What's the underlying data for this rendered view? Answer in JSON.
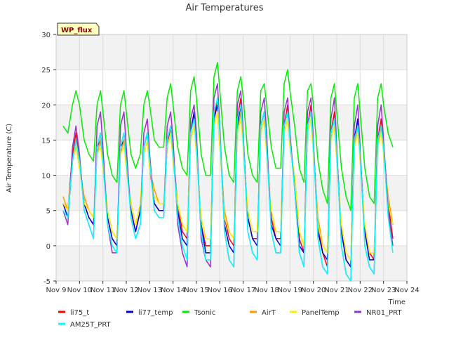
{
  "chart_data": {
    "type": "line",
    "title": "Air Temperatures",
    "xlabel": "Time",
    "ylabel": "Air Temperature (C)",
    "site_label": "WP_flux",
    "x_ticks": [
      "Nov 9",
      "Nov 10",
      "Nov 11",
      "Nov 12",
      "Nov 13",
      "Nov 14",
      "Nov 15",
      "Nov 16",
      "Nov 17",
      "Nov 18",
      "Nov 19",
      "Nov 20",
      "Nov 21",
      "Nov 22",
      "Nov 23",
      "Nov 24"
    ],
    "xlim": [
      9,
      24
    ],
    "ylim": [
      -5,
      30
    ],
    "y_ticks": [
      -5,
      0,
      5,
      10,
      15,
      20,
      25,
      30
    ],
    "grid": true,
    "legend_placement": "bottom",
    "x_unit": "day of November",
    "series": [
      {
        "name": "li75_t",
        "color": "#ff0000",
        "x": [
          9.3,
          9.5,
          9.7,
          9.85,
          10.0,
          10.2,
          10.4,
          10.6,
          10.75,
          10.9,
          11.0,
          11.2,
          11.4,
          11.6,
          11.75,
          11.9,
          12.0,
          12.2,
          12.4,
          12.6,
          12.75,
          12.9,
          13.0,
          13.2,
          13.4,
          13.6,
          13.75,
          13.9,
          14.0,
          14.2,
          14.4,
          14.6,
          14.75,
          14.9,
          15.0,
          15.2,
          15.4,
          15.6,
          15.75,
          15.9,
          16.0,
          16.2,
          16.4,
          16.6,
          16.75,
          16.9,
          17.0,
          17.2,
          17.4,
          17.6,
          17.75,
          17.9,
          18.0,
          18.2,
          18.4,
          18.6,
          18.75,
          18.9,
          19.0,
          19.2,
          19.4,
          19.6,
          19.75,
          19.9,
          20.0,
          20.2,
          20.4,
          20.6,
          20.75,
          20.9,
          21.0,
          21.2,
          21.4,
          21.6,
          21.75,
          21.9,
          22.0,
          22.2,
          22.4,
          22.6,
          22.75,
          22.9,
          23.0,
          23.2,
          23.4
        ],
        "y": [
          6,
          5,
          13,
          16,
          12,
          6,
          4,
          3,
          14,
          15,
          12,
          4,
          1,
          0,
          14,
          16,
          12,
          5,
          2,
          5,
          14,
          16,
          11,
          6,
          5,
          5,
          14,
          17,
          13,
          6,
          2,
          1,
          16,
          19,
          14,
          3,
          0,
          0,
          18,
          21,
          15,
          4,
          1,
          0,
          18,
          21,
          15,
          4,
          1,
          1,
          17,
          19,
          14,
          4,
          1,
          1,
          17,
          20,
          15,
          9,
          1,
          -1,
          17,
          20,
          14,
          3,
          -1,
          -3,
          16,
          19,
          13,
          2,
          -2,
          -3,
          15,
          18,
          13,
          2,
          -1,
          -2,
          15,
          18,
          14,
          6,
          1
        ]
      },
      {
        "name": "li77_temp",
        "color": "#0000cc",
        "x": [
          9.3,
          9.5,
          9.7,
          9.85,
          10.0,
          10.2,
          10.4,
          10.6,
          10.75,
          10.9,
          11.0,
          11.2,
          11.4,
          11.6,
          11.75,
          11.9,
          12.0,
          12.2,
          12.4,
          12.6,
          12.75,
          12.9,
          13.0,
          13.2,
          13.4,
          13.6,
          13.75,
          13.9,
          14.0,
          14.2,
          14.4,
          14.6,
          14.75,
          14.9,
          15.0,
          15.2,
          15.4,
          15.6,
          15.75,
          15.9,
          16.0,
          16.2,
          16.4,
          16.6,
          16.75,
          16.9,
          17.0,
          17.2,
          17.4,
          17.6,
          17.75,
          17.9,
          18.0,
          18.2,
          18.4,
          18.6,
          18.75,
          18.9,
          19.0,
          19.2,
          19.4,
          19.6,
          19.75,
          19.9,
          20.0,
          20.2,
          20.4,
          20.6,
          20.75,
          20.9,
          21.0,
          21.2,
          21.4,
          21.6,
          21.75,
          21.9,
          22.0,
          22.2,
          22.4,
          22.6,
          22.75,
          22.9,
          23.0,
          23.2,
          23.4
        ],
        "y": [
          6,
          4,
          12,
          15,
          12,
          6,
          4,
          3,
          14,
          16,
          12,
          4,
          1,
          0,
          14,
          15,
          12,
          5,
          2,
          5,
          14,
          16,
          12,
          6,
          5,
          5,
          15,
          17,
          13,
          5,
          1,
          0,
          16,
          19,
          14,
          3,
          -1,
          -1,
          18,
          20,
          15,
          3,
          0,
          -1,
          17,
          20,
          15,
          4,
          1,
          0,
          17,
          19,
          14,
          3,
          1,
          0,
          17,
          19,
          15,
          9,
          0,
          -1,
          17,
          19,
          14,
          2,
          -1,
          -2,
          16,
          18,
          13,
          2,
          -2,
          -3,
          15,
          18,
          13,
          2,
          -2,
          -2,
          15,
          17,
          14,
          6,
          3
        ]
      },
      {
        "name": "Tsonic",
        "color": "#00ee00",
        "x": [
          9.3,
          9.5,
          9.7,
          9.85,
          10.0,
          10.2,
          10.4,
          10.6,
          10.75,
          10.9,
          11.0,
          11.2,
          11.4,
          11.6,
          11.75,
          11.9,
          12.0,
          12.2,
          12.4,
          12.6,
          12.75,
          12.9,
          13.0,
          13.2,
          13.4,
          13.6,
          13.75,
          13.9,
          14.0,
          14.2,
          14.4,
          14.6,
          14.75,
          14.9,
          15.0,
          15.2,
          15.4,
          15.6,
          15.75,
          15.9,
          16.0,
          16.2,
          16.4,
          16.6,
          16.75,
          16.9,
          17.0,
          17.2,
          17.4,
          17.6,
          17.75,
          17.9,
          18.0,
          18.2,
          18.4,
          18.6,
          18.75,
          18.9,
          19.0,
          19.2,
          19.4,
          19.6,
          19.75,
          19.9,
          20.0,
          20.2,
          20.4,
          20.6,
          20.75,
          20.9,
          21.0,
          21.2,
          21.4,
          21.6,
          21.75,
          21.9,
          22.0,
          22.2,
          22.4,
          22.6,
          22.75,
          22.9,
          23.0,
          23.2,
          23.4
        ],
        "y": [
          17,
          16,
          20,
          22,
          20,
          15,
          13,
          12,
          20,
          22,
          19,
          13,
          10,
          9,
          20,
          22,
          19,
          13,
          11,
          13,
          20,
          22,
          20,
          15,
          14,
          14,
          21,
          23,
          20,
          14,
          11,
          10,
          22,
          24,
          21,
          13,
          10,
          10,
          24,
          26,
          22,
          14,
          10,
          9,
          22,
          24,
          21,
          13,
          10,
          9,
          22,
          23,
          20,
          14,
          11,
          11,
          23,
          25,
          22,
          17,
          11,
          9,
          22,
          23,
          20,
          12,
          8,
          6,
          21,
          23,
          19,
          11,
          7,
          5,
          21,
          23,
          19,
          11,
          7,
          6,
          21,
          23,
          20,
          16,
          14
        ]
      },
      {
        "name": "AirT",
        "color": "#ff9900",
        "x": [
          9.3,
          9.5,
          9.7,
          9.85,
          10.0,
          10.2,
          10.4,
          10.6,
          10.75,
          10.9,
          11.0,
          11.2,
          11.4,
          11.6,
          11.75,
          11.9,
          12.0,
          12.2,
          12.4,
          12.6,
          12.75,
          12.9,
          13.0,
          13.2,
          13.4,
          13.6,
          13.75,
          13.9,
          14.0,
          14.2,
          14.4,
          14.6,
          14.75,
          14.9,
          15.0,
          15.2,
          15.4,
          15.6,
          15.75,
          15.9,
          16.0,
          16.2,
          16.4,
          16.6,
          16.75,
          16.9,
          17.0,
          17.2,
          17.4,
          17.6,
          17.75,
          17.9,
          18.0,
          18.2,
          18.4,
          18.6,
          18.75,
          18.9,
          19.0,
          19.2,
          19.4,
          19.6,
          19.75,
          19.9,
          20.0,
          20.2,
          20.4,
          20.6,
          20.75,
          20.9,
          21.0,
          21.2,
          21.4,
          21.6,
          21.75,
          21.9,
          22.0,
          22.2,
          22.4,
          22.6,
          22.75,
          22.9,
          23.0,
          23.2,
          23.4
        ],
        "y": [
          7,
          5,
          12,
          14,
          11,
          7,
          5,
          4,
          13,
          15,
          11,
          5,
          2,
          1,
          13,
          15,
          11,
          6,
          3,
          6,
          13,
          15,
          11,
          8,
          6,
          6,
          14,
          16,
          12,
          6,
          3,
          2,
          15,
          17,
          13,
          4,
          1,
          1,
          17,
          19,
          14,
          5,
          2,
          1,
          16,
          19,
          14,
          5,
          2,
          2,
          16,
          18,
          13,
          5,
          2,
          2,
          16,
          18,
          14,
          10,
          2,
          0,
          16,
          18,
          13,
          4,
          0,
          -1,
          15,
          17,
          12,
          3,
          -1,
          -2,
          14,
          17,
          12,
          3,
          -1,
          -1,
          14,
          17,
          13,
          7,
          3
        ]
      },
      {
        "name": "PanelTemp",
        "color": "#ffee00",
        "x": [
          9.3,
          9.5,
          9.7,
          9.85,
          10.0,
          10.2,
          10.4,
          10.6,
          10.75,
          10.9,
          11.0,
          11.2,
          11.4,
          11.6,
          11.75,
          11.9,
          12.0,
          12.2,
          12.4,
          12.6,
          12.75,
          12.9,
          13.0,
          13.2,
          13.4,
          13.6,
          13.75,
          13.9,
          14.0,
          14.2,
          14.4,
          14.6,
          14.75,
          14.9,
          15.0,
          15.2,
          15.4,
          15.6,
          15.75,
          15.9,
          16.0,
          16.2,
          16.4,
          16.6,
          16.75,
          16.9,
          17.0,
          17.2,
          17.4,
          17.6,
          17.75,
          17.9,
          18.0,
          18.2,
          18.4,
          18.6,
          18.75,
          18.9,
          19.0,
          19.2,
          19.4,
          19.6,
          19.75,
          19.9,
          20.0,
          20.2,
          20.4,
          20.6,
          20.75,
          20.9,
          21.0,
          21.2,
          21.4,
          21.6,
          21.75,
          21.9,
          22.0,
          22.2,
          22.4,
          22.6,
          22.75,
          22.9,
          23.0,
          23.2,
          23.4
        ],
        "y": [
          6,
          5,
          12,
          14,
          11,
          6,
          5,
          4,
          13,
          14,
          11,
          5,
          2,
          1,
          13,
          14,
          11,
          6,
          3,
          6,
          13,
          15,
          11,
          7,
          6,
          6,
          14,
          16,
          12,
          6,
          3,
          2,
          15,
          17,
          13,
          4,
          1,
          1,
          17,
          19,
          14,
          4,
          2,
          1,
          16,
          18,
          14,
          5,
          2,
          2,
          16,
          18,
          13,
          5,
          2,
          2,
          16,
          18,
          14,
          10,
          2,
          0,
          16,
          18,
          13,
          3,
          0,
          -1,
          15,
          17,
          12,
          3,
          -1,
          -2,
          14,
          16,
          12,
          3,
          -1,
          -1,
          14,
          16,
          13,
          6,
          3
        ]
      },
      {
        "name": "NR01_PRT",
        "color": "#9933cc",
        "x": [
          9.3,
          9.5,
          9.7,
          9.85,
          10.0,
          10.2,
          10.4,
          10.6,
          10.75,
          10.9,
          11.0,
          11.2,
          11.4,
          11.6,
          11.75,
          11.9,
          12.0,
          12.2,
          12.4,
          12.6,
          12.75,
          12.9,
          13.0,
          13.2,
          13.4,
          13.6,
          13.75,
          13.9,
          14.0,
          14.2,
          14.4,
          14.6,
          14.75,
          14.9,
          15.0,
          15.2,
          15.4,
          15.6,
          15.75,
          15.9,
          16.0,
          16.2,
          16.4,
          16.6,
          16.75,
          16.9,
          17.0,
          17.2,
          17.4,
          17.6,
          17.75,
          17.9,
          18.0,
          18.2,
          18.4,
          18.6,
          18.75,
          18.9,
          19.0,
          19.2,
          19.4,
          19.6,
          19.75,
          19.9,
          20.0,
          20.2,
          20.4,
          20.6,
          20.75,
          20.9,
          21.0,
          21.2,
          21.4,
          21.6,
          21.75,
          21.9,
          22.0,
          22.2,
          22.4,
          22.6,
          22.75,
          22.9,
          23.0,
          23.2,
          23.4
        ],
        "y": [
          5,
          3,
          14,
          17,
          13,
          5,
          3,
          1,
          17,
          19,
          14,
          3,
          -1,
          -1,
          17,
          19,
          14,
          4,
          1,
          3,
          16,
          18,
          13,
          5,
          4,
          4,
          17,
          19,
          15,
          3,
          -1,
          -3,
          18,
          20,
          16,
          1,
          -2,
          -3,
          21,
          23,
          17,
          2,
          -2,
          -3,
          20,
          22,
          16,
          2,
          -1,
          -2,
          19,
          21,
          16,
          2,
          -1,
          -1,
          19,
          21,
          16,
          8,
          -1,
          -3,
          19,
          21,
          15,
          1,
          -3,
          -4,
          18,
          21,
          14,
          0,
          -4,
          -5,
          17,
          20,
          14,
          0,
          -3,
          -4,
          17,
          20,
          15,
          5,
          0
        ]
      },
      {
        "name": "AM25T_PRT",
        "color": "#00ffff",
        "x": [
          9.3,
          9.5,
          9.7,
          9.85,
          10.0,
          10.2,
          10.4,
          10.6,
          10.75,
          10.9,
          11.0,
          11.2,
          11.4,
          11.6,
          11.75,
          11.9,
          12.0,
          12.2,
          12.4,
          12.6,
          12.75,
          12.9,
          13.0,
          13.2,
          13.4,
          13.6,
          13.75,
          13.9,
          14.0,
          14.2,
          14.4,
          14.6,
          14.75,
          14.9,
          15.0,
          15.2,
          15.4,
          15.6,
          15.75,
          15.9,
          16.0,
          16.2,
          16.4,
          16.6,
          16.75,
          16.9,
          17.0,
          17.2,
          17.4,
          17.6,
          17.75,
          17.9,
          18.0,
          18.2,
          18.4,
          18.6,
          18.75,
          18.9,
          19.0,
          19.2,
          19.4,
          19.6,
          19.75,
          19.9,
          20.0,
          20.2,
          20.4,
          20.6,
          20.75,
          20.9,
          21.0,
          21.2,
          21.4,
          21.6,
          21.75,
          21.9,
          22.0,
          22.2,
          22.4,
          22.6,
          22.75,
          22.9,
          23.0,
          23.2,
          23.4
        ],
        "y": [
          5,
          4,
          12,
          15,
          12,
          5,
          3,
          1,
          14,
          16,
          12,
          3,
          0,
          -1,
          14,
          16,
          12,
          4,
          1,
          3,
          14,
          16,
          12,
          5,
          4,
          4,
          15,
          17,
          13,
          4,
          0,
          -2,
          16,
          18,
          14,
          2,
          -2,
          -2,
          19,
          21,
          16,
          2,
          -2,
          -3,
          18,
          20,
          15,
          2,
          -1,
          -2,
          17,
          19,
          14,
          2,
          -1,
          -1,
          17,
          19,
          15,
          8,
          -1,
          -3,
          17,
          19,
          14,
          1,
          -3,
          -4,
          16,
          18,
          13,
          0,
          -4,
          -5,
          15,
          17,
          13,
          0,
          -3,
          -4,
          15,
          17,
          14,
          4,
          -1
        ]
      }
    ]
  }
}
